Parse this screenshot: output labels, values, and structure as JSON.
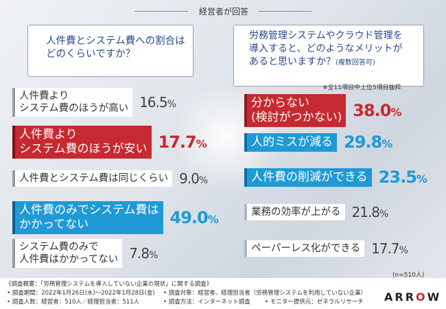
{
  "header": {
    "title": "経営者が回答"
  },
  "q1": {
    "lines": [
      "人件費とシステム費への割合は",
      "どのくらいですか？"
    ]
  },
  "q2": {
    "lines": [
      "労務管理システムやクラウド管理を",
      "導入すると、どのようなメリットが",
      "あると思いますか？"
    ],
    "suffix": "(複数回答可)"
  },
  "note": "※全11項目中上位5項目抜粋",
  "chart_data": [
    {
      "type": "bar",
      "categories": [
        "人件費よりシステム費のほうが高い",
        "人件費よりシステム費のほうが安い",
        "人件費とシステム費は同じくらい",
        "人件費のみでシステム費はかかってない",
        "システム費のみで人件費はかかってない"
      ],
      "values": [
        16.5,
        17.7,
        9.0,
        49.0,
        7.8
      ],
      "unit": "%",
      "label_lines": [
        [
          "人件費より",
          "システム費のほうが高い"
        ],
        [
          "人件費より",
          "システム費のほうが安い"
        ],
        [
          "人件費とシステム費は同じくらい"
        ],
        [
          "人件費のみでシステム費は",
          "かかってない"
        ],
        [
          "システム費のみで",
          "人件費はかかってない"
        ]
      ],
      "styles": [
        "plain",
        "red",
        "plain",
        "blue",
        "plain"
      ],
      "value_text": [
        [
          "16.5",
          "%"
        ],
        [
          "17.7",
          "%"
        ],
        [
          "9.0",
          "%"
        ],
        [
          "49.0",
          "%"
        ],
        [
          "7.8",
          "%"
        ]
      ]
    },
    {
      "type": "bar",
      "categories": [
        "分からない(検討がつかない)",
        "人的ミスが減る",
        "人件費の削減ができる",
        "業務の効率が上がる",
        "ペーパーレス化ができる"
      ],
      "values": [
        38.0,
        29.8,
        23.5,
        21.8,
        17.7
      ],
      "unit": "%",
      "label_lines": [
        [
          "分からない",
          "(検討がつかない)"
        ],
        [
          "人的ミスが減る"
        ],
        [
          "人件費の削減ができる"
        ],
        [
          "業務の効率が上がる"
        ],
        [
          "ペーパーレス化ができる"
        ]
      ],
      "styles": [
        "red",
        "blue",
        "blue",
        "plain",
        "plain"
      ],
      "value_text": [
        [
          "38.0",
          "%"
        ],
        [
          "29.8",
          "%"
        ],
        [
          "23.5",
          "%"
        ],
        [
          "21.8",
          "%"
        ],
        [
          "17.7",
          "%"
        ]
      ]
    }
  ],
  "n_note": "(n=510人)",
  "footer": {
    "l1": "《調査概要：「労務管理システムを導入していない企業の現状」に関する調査》",
    "l2": "• 調査期間：2022年1月26日(水)〜2022年1月28日(金)",
    "l3": "• 調査人数：経営者：510人／経理担当者：511人",
    "r2": "• 調査対象：経営者、経理担当者（労務管理システムを利用していない企業）",
    "r3a": "• 調査方法：インターネット調査",
    "r3b": "• モニター提供元：ゼネラルリサーチ"
  },
  "logo": {
    "pre": "ARR",
    "o": "O",
    "post": "W"
  }
}
